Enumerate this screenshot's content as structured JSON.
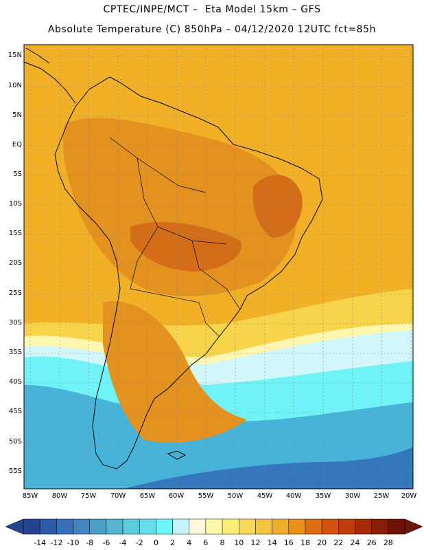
{
  "title": {
    "line1": "CPTEC/INPE/MCT –  Eta Model 15km – GFS",
    "line2": "Absolute Temperature (C) 850hPa – 04/12/2020 12UTC fct=85h"
  },
  "latitude_labels": [
    "15N",
    "10N",
    "5N",
    "EQ",
    "5S",
    "10S",
    "15S",
    "20S",
    "25S",
    "30S",
    "35S",
    "40S",
    "45S",
    "50S",
    "55S"
  ],
  "longitude_labels": [
    "85W",
    "80W",
    "75W",
    "70W",
    "65W",
    "60W",
    "55W",
    "50W",
    "45W",
    "40W",
    "35W",
    "30W",
    "25W",
    "20W"
  ],
  "colorbar": {
    "labels": [
      "-14",
      "-12",
      "-10",
      "-8",
      "-6",
      "-4",
      "-2",
      "0",
      "2",
      "4",
      "6",
      "8",
      "10",
      "12",
      "14",
      "16",
      "18",
      "20",
      "22",
      "24",
      "26",
      "28"
    ],
    "colors": [
      "#24448f",
      "#2c5aa6",
      "#3670b6",
      "#4186c0",
      "#4b9ec8",
      "#56b4d2",
      "#5ecbdc",
      "#66dde8",
      "#6ef6f6",
      "#c8f2fa",
      "#fff6dc",
      "#fff8a8",
      "#fcec78",
      "#f8d858",
      "#f4c440",
      "#f0ae28",
      "#ea9218",
      "#e06e10",
      "#d4520c",
      "#c03c08",
      "#a42a08",
      "#842008",
      "#6c1406"
    ]
  },
  "map_colors": {
    "warm": "#f2b027",
    "hot": "#e3911f",
    "hotter": "#d36d18",
    "mild": "#f7d44a",
    "cool": "#fff7b0",
    "cold": "#d2f7fa",
    "colder": "#6ff3f6",
    "coldest": "#48b3d8",
    "deep": "#3477bc"
  }
}
